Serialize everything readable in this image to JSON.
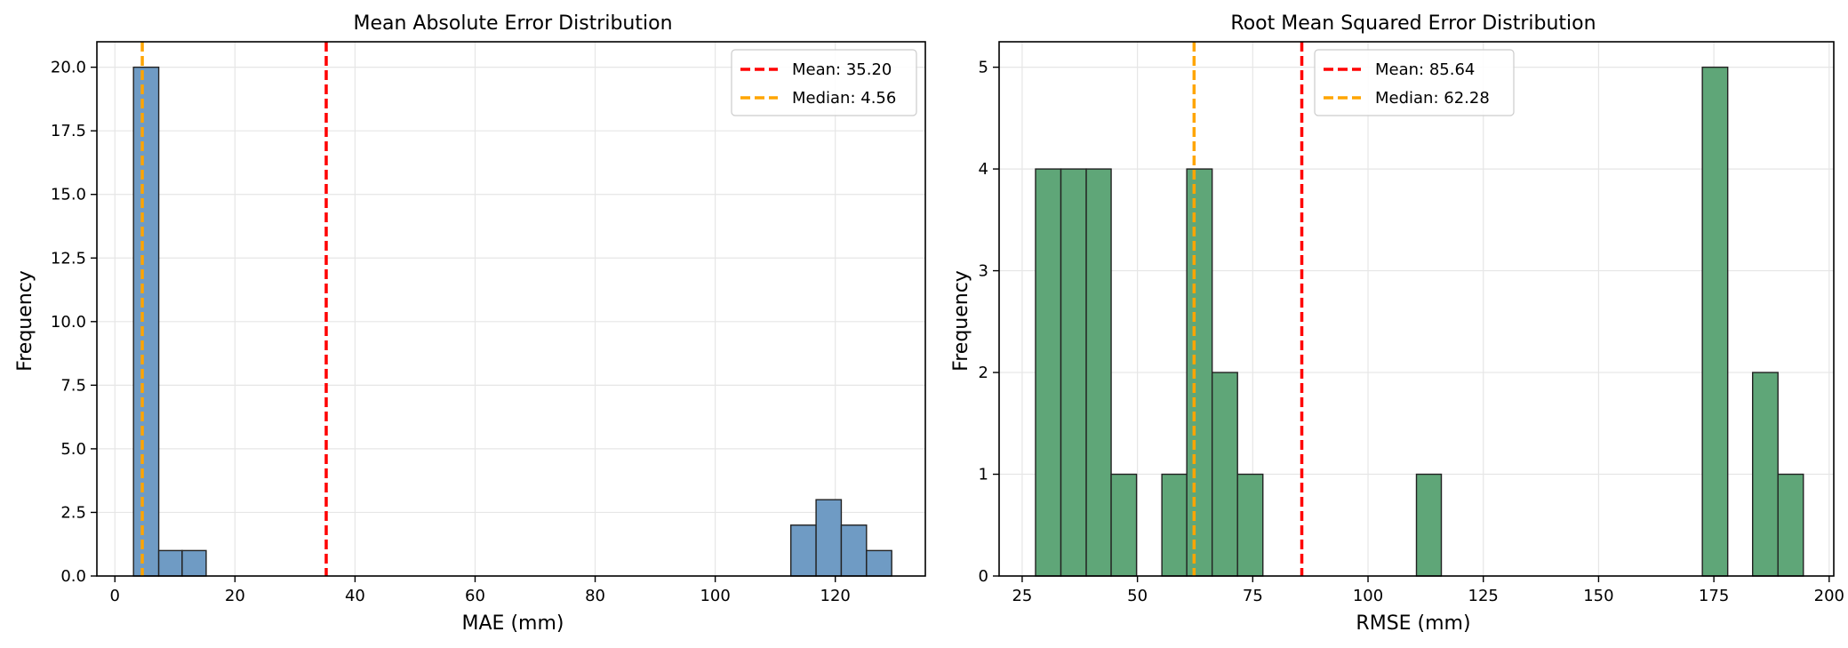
{
  "colors": {
    "mae_bar": "#6f9bc4",
    "rmse_bar": "#5fa678",
    "bar_edge": "#222222",
    "mean_line": "#ff0000",
    "median_line": "#ffa500",
    "grid": "#e6e6e6"
  },
  "chart_data": [
    {
      "type": "bar",
      "title": "Mean Absolute Error Distribution",
      "xlabel": "MAE (mm)",
      "ylabel": "Frequency",
      "xlim": [
        -3,
        135
      ],
      "ylim": [
        0,
        21
      ],
      "xticks": [
        0,
        20,
        40,
        60,
        80,
        100,
        120
      ],
      "yticks": [
        0.0,
        2.5,
        5.0,
        7.5,
        10.0,
        12.5,
        15.0,
        17.5,
        20.0
      ],
      "ytick_labels": [
        "0.0",
        "2.5",
        "5.0",
        "7.5",
        "10.0",
        "12.5",
        "15.0",
        "17.5",
        "20.0"
      ],
      "grid": true,
      "bins": [
        {
          "x0": 3.1,
          "x1": 7.3,
          "count": 20
        },
        {
          "x0": 7.3,
          "x1": 11.2,
          "count": 1
        },
        {
          "x0": 11.2,
          "x1": 15.2,
          "count": 1
        },
        {
          "x0": 112.6,
          "x1": 116.8,
          "count": 2
        },
        {
          "x0": 116.8,
          "x1": 121.0,
          "count": 3
        },
        {
          "x0": 121.0,
          "x1": 125.2,
          "count": 2
        },
        {
          "x0": 125.2,
          "x1": 129.4,
          "count": 1
        }
      ],
      "mean": 35.2,
      "median": 4.56,
      "legend": {
        "position": "upper right",
        "mean_label": "Mean: 35.20",
        "median_label": "Median: 4.56"
      }
    },
    {
      "type": "bar",
      "title": "Root Mean Squared Error Distribution",
      "xlabel": "RMSE (mm)",
      "ylabel": "Frequency",
      "xlim": [
        20,
        201
      ],
      "ylim": [
        0,
        5.25
      ],
      "xticks": [
        25,
        50,
        75,
        100,
        125,
        150,
        175,
        200
      ],
      "yticks": [
        0,
        1,
        2,
        3,
        4,
        5
      ],
      "ytick_labels": [
        "0",
        "1",
        "2",
        "3",
        "4",
        "5"
      ],
      "grid": true,
      "bins": [
        {
          "x0": 27.9,
          "x1": 33.4,
          "count": 4
        },
        {
          "x0": 33.4,
          "x1": 38.9,
          "count": 4
        },
        {
          "x0": 38.9,
          "x1": 44.3,
          "count": 4
        },
        {
          "x0": 44.3,
          "x1": 49.8,
          "count": 1
        },
        {
          "x0": 55.3,
          "x1": 60.7,
          "count": 1
        },
        {
          "x0": 60.7,
          "x1": 66.2,
          "count": 4
        },
        {
          "x0": 66.2,
          "x1": 71.7,
          "count": 2
        },
        {
          "x0": 71.7,
          "x1": 77.2,
          "count": 1
        },
        {
          "x0": 110.5,
          "x1": 115.9,
          "count": 1
        },
        {
          "x0": 172.5,
          "x1": 178.0,
          "count": 5
        },
        {
          "x0": 183.4,
          "x1": 188.9,
          "count": 2
        },
        {
          "x0": 188.9,
          "x1": 194.4,
          "count": 1
        }
      ],
      "mean": 85.64,
      "median": 62.28,
      "legend": {
        "position": "upper center",
        "mean_label": "Mean: 85.64",
        "median_label": "Median: 62.28"
      }
    }
  ]
}
